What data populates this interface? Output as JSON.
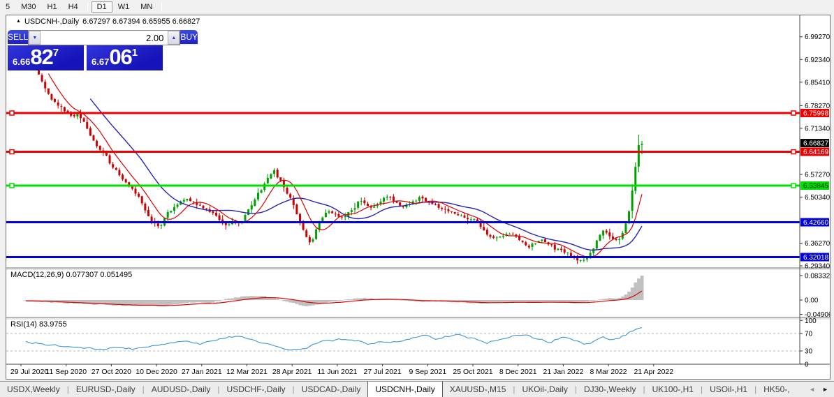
{
  "toolbar": {
    "items": [
      {
        "label": "5"
      },
      {
        "label": "M30"
      },
      {
        "label": "H1"
      },
      {
        "label": "H4"
      },
      {
        "sep": true
      },
      {
        "label": "D1",
        "active": true
      },
      {
        "label": "W1"
      },
      {
        "label": "MN"
      },
      {
        "sep": true
      }
    ]
  },
  "chart": {
    "collapse_arrow": "▲",
    "title_symbol": "USDCNH-,Daily",
    "title_ohlc": "6.67297 6.67394 6.65955 6.66827"
  },
  "trade_panel": {
    "sell_label": "SELL",
    "buy_label": "BUY",
    "volume": "2.00",
    "spin_down": "▼",
    "spin_up": "▲",
    "sell_price": {
      "prefix": "6.66",
      "big": "82",
      "sup": "7"
    },
    "buy_price": {
      "prefix": "6.67",
      "big": "06",
      "sup": "1"
    }
  },
  "macd_panel": {
    "label": "MACD(12,26,9) 0.077307 0.051495"
  },
  "rsi_panel": {
    "label": "RSI(14) 83.9755"
  },
  "tabs": {
    "items": [
      {
        "label": "USDX,Weekly"
      },
      {
        "label": "EURUSD-,Daily"
      },
      {
        "label": "AUDUSD-,Daily"
      },
      {
        "label": "USDCHF-,Daily"
      },
      {
        "label": "USDCAD-,Daily"
      },
      {
        "label": "USDCNH-,Daily",
        "active": true
      },
      {
        "label": "XAUUSD-,M15"
      },
      {
        "label": "UKOil-,Daily"
      },
      {
        "label": "DJ30-,Weekly"
      },
      {
        "label": "UK100-,H1"
      },
      {
        "label": "USOil-,H1"
      },
      {
        "label": "HK50-,"
      }
    ],
    "scroll_left": "◄",
    "scroll_right": "►"
  },
  "chart_data": {
    "type": "candlestick",
    "symbol": "USDCNH-",
    "timeframe": "Daily",
    "bars": 192,
    "ohlc_current": {
      "open": 6.67297,
      "high": 6.67394,
      "low": 6.65955,
      "close": 6.66827
    },
    "last_price": 6.66827,
    "price_axis_ticks": [
      "6.99270",
      "6.92340",
      "6.85410",
      "6.78270",
      "6.71340",
      "6.57270",
      "6.50340",
      "6.36270",
      "6.29340"
    ],
    "price_axis_tick_values": [
      6.9927,
      6.9234,
      6.8541,
      6.7827,
      6.7134,
      6.5727,
      6.5034,
      6.3627,
      6.2934
    ],
    "hlines": [
      {
        "price": 6.75998,
        "label": "6.75998",
        "color": "#ee0000",
        "text": "#ffffff",
        "handles": true
      },
      {
        "price": 6.64169,
        "label": "6.64169",
        "color": "#ee0000",
        "text": "#ffffff",
        "handles": true
      },
      {
        "price": 6.53845,
        "label": "6.53845",
        "color": "#00dd00",
        "text": "#003300",
        "handles": true
      },
      {
        "price": 6.4266,
        "label": "6.42660",
        "color": "#0000dd",
        "text": "#ffffff",
        "handles": false
      },
      {
        "price": 6.32018,
        "label": "6.32018",
        "color": "#0000dd",
        "text": "#ffffff",
        "handles": false
      }
    ],
    "x_axis_dates": [
      "29 Jul 2020",
      "11 Sep 2020",
      "27 Oct 2020",
      "10 Dec 2020",
      "27 Jan 2021",
      "12 Mar 2021",
      "28 Apr 2021",
      "11 Jun 2021",
      "27 Jul 2021",
      "9 Sep 2021",
      "25 Oct 2021",
      "8 Dec 2021",
      "21 Jan 2022",
      "8 Mar 2022",
      "21 Apr 2022"
    ],
    "close_anchors": [
      [
        0,
        6.935
      ],
      [
        0.019,
        6.885
      ],
      [
        0.042,
        6.8
      ],
      [
        0.065,
        6.765
      ],
      [
        0.076,
        6.75
      ],
      [
        0.084,
        6.76
      ],
      [
        0.093,
        6.735
      ],
      [
        0.105,
        6.69
      ],
      [
        0.116,
        6.655
      ],
      [
        0.127,
        6.64
      ],
      [
        0.139,
        6.6
      ],
      [
        0.15,
        6.575
      ],
      [
        0.161,
        6.55
      ],
      [
        0.173,
        6.53
      ],
      [
        0.184,
        6.5
      ],
      [
        0.195,
        6.455
      ],
      [
        0.209,
        6.42
      ],
      [
        0.218,
        6.41
      ],
      [
        0.227,
        6.45
      ],
      [
        0.239,
        6.47
      ],
      [
        0.25,
        6.49
      ],
      [
        0.264,
        6.5
      ],
      [
        0.275,
        6.48
      ],
      [
        0.286,
        6.475
      ],
      [
        0.298,
        6.46
      ],
      [
        0.311,
        6.44
      ],
      [
        0.323,
        6.415
      ],
      [
        0.338,
        6.43
      ],
      [
        0.349,
        6.42
      ],
      [
        0.36,
        6.46
      ],
      [
        0.372,
        6.5
      ],
      [
        0.383,
        6.53
      ],
      [
        0.394,
        6.57
      ],
      [
        0.402,
        6.585
      ],
      [
        0.411,
        6.56
      ],
      [
        0.423,
        6.52
      ],
      [
        0.432,
        6.49
      ],
      [
        0.443,
        6.44
      ],
      [
        0.455,
        6.38
      ],
      [
        0.463,
        6.36
      ],
      [
        0.47,
        6.4
      ],
      [
        0.48,
        6.44
      ],
      [
        0.491,
        6.46
      ],
      [
        0.502,
        6.45
      ],
      [
        0.514,
        6.44
      ],
      [
        0.525,
        6.46
      ],
      [
        0.536,
        6.47
      ],
      [
        0.542,
        6.5
      ],
      [
        0.553,
        6.48
      ],
      [
        0.565,
        6.47
      ],
      [
        0.576,
        6.49
      ],
      [
        0.585,
        6.51
      ],
      [
        0.593,
        6.5
      ],
      [
        0.605,
        6.48
      ],
      [
        0.616,
        6.475
      ],
      [
        0.627,
        6.49
      ],
      [
        0.639,
        6.5
      ],
      [
        0.65,
        6.49
      ],
      [
        0.661,
        6.48
      ],
      [
        0.673,
        6.47
      ],
      [
        0.684,
        6.462
      ],
      [
        0.695,
        6.455
      ],
      [
        0.707,
        6.445
      ],
      [
        0.718,
        6.438
      ],
      [
        0.73,
        6.432
      ],
      [
        0.741,
        6.405
      ],
      [
        0.752,
        6.385
      ],
      [
        0.76,
        6.375
      ],
      [
        0.769,
        6.385
      ],
      [
        0.781,
        6.392
      ],
      [
        0.792,
        6.385
      ],
      [
        0.803,
        6.373
      ],
      [
        0.815,
        6.35
      ],
      [
        0.826,
        6.362
      ],
      [
        0.838,
        6.37
      ],
      [
        0.849,
        6.358
      ],
      [
        0.86,
        6.345
      ],
      [
        0.872,
        6.34
      ],
      [
        0.883,
        6.328
      ],
      [
        0.894,
        6.315
      ],
      [
        0.903,
        6.305
      ],
      [
        0.911,
        6.32
      ],
      [
        0.92,
        6.338
      ],
      [
        0.928,
        6.375
      ],
      [
        0.936,
        6.405
      ],
      [
        0.945,
        6.39
      ],
      [
        0.955,
        6.372
      ],
      [
        0.962,
        6.374
      ],
      [
        0.969,
        6.392
      ],
      [
        0.976,
        6.432
      ],
      [
        0.982,
        6.492
      ],
      [
        0.986,
        6.548
      ],
      [
        0.991,
        6.612
      ],
      [
        0.994,
        6.66
      ],
      [
        0.998,
        6.69
      ],
      [
        1,
        6.668
      ]
    ],
    "indicators": {
      "macd": {
        "params": [
          12,
          26,
          9
        ],
        "current": [
          0.077307,
          0.051495
        ],
        "scale_ticks": [
          "0.083325",
          "0.00",
          "-0.049068"
        ],
        "scale_values": [
          0.083325,
          0,
          -0.049068
        ],
        "anchors": [
          [
            0,
            -0.004
          ],
          [
            0.06,
            -0.01
          ],
          [
            0.12,
            -0.016
          ],
          [
            0.17,
            -0.02
          ],
          [
            0.2,
            -0.018
          ],
          [
            0.22,
            -0.022
          ],
          [
            0.24,
            -0.015
          ],
          [
            0.27,
            -0.008
          ],
          [
            0.3,
            -0.01
          ],
          [
            0.33,
            0.006
          ],
          [
            0.36,
            0.014
          ],
          [
            0.39,
            0.012
          ],
          [
            0.41,
            0.002
          ],
          [
            0.43,
            -0.008
          ],
          [
            0.455,
            -0.022
          ],
          [
            0.47,
            -0.018
          ],
          [
            0.49,
            -0.008
          ],
          [
            0.52,
            0.002
          ],
          [
            0.55,
            0.006
          ],
          [
            0.58,
            0.004
          ],
          [
            0.61,
            -0.002
          ],
          [
            0.64,
            -0.006
          ],
          [
            0.66,
            -0.004
          ],
          [
            0.68,
            -0.005
          ],
          [
            0.7,
            -0.007
          ],
          [
            0.73,
            -0.012
          ],
          [
            0.76,
            -0.01
          ],
          [
            0.79,
            -0.006
          ],
          [
            0.82,
            -0.009
          ],
          [
            0.85,
            -0.007
          ],
          [
            0.88,
            -0.009
          ],
          [
            0.9,
            -0.01
          ],
          [
            0.915,
            -0.005
          ],
          [
            0.93,
            0.003
          ],
          [
            0.945,
            0.006
          ],
          [
            0.955,
            0.004
          ],
          [
            0.965,
            0.008
          ],
          [
            0.975,
            0.02
          ],
          [
            0.982,
            0.036
          ],
          [
            0.988,
            0.055
          ],
          [
            0.994,
            0.072
          ],
          [
            1,
            0.0833
          ]
        ]
      },
      "rsi": {
        "period": 14,
        "current": 83.9755,
        "levels": [
          70,
          30
        ],
        "scale_ticks": [
          "100",
          "70",
          "30",
          "0"
        ],
        "scale_values": [
          100,
          70,
          30,
          0
        ],
        "anchors": [
          [
            0,
            50
          ],
          [
            0.02,
            47
          ],
          [
            0.045,
            43
          ],
          [
            0.07,
            40
          ],
          [
            0.1,
            37
          ],
          [
            0.13,
            34
          ],
          [
            0.15,
            38
          ],
          [
            0.175,
            34
          ],
          [
            0.2,
            40
          ],
          [
            0.22,
            45
          ],
          [
            0.24,
            50
          ],
          [
            0.26,
            54
          ],
          [
            0.28,
            46
          ],
          [
            0.3,
            52
          ],
          [
            0.32,
            60
          ],
          [
            0.345,
            64
          ],
          [
            0.365,
            56
          ],
          [
            0.385,
            48
          ],
          [
            0.41,
            38
          ],
          [
            0.435,
            32
          ],
          [
            0.455,
            36
          ],
          [
            0.475,
            50
          ],
          [
            0.5,
            55
          ],
          [
            0.52,
            58
          ],
          [
            0.54,
            52
          ],
          [
            0.56,
            45
          ],
          [
            0.575,
            52
          ],
          [
            0.59,
            48
          ],
          [
            0.61,
            54
          ],
          [
            0.63,
            60
          ],
          [
            0.65,
            66
          ],
          [
            0.665,
            58
          ],
          [
            0.685,
            64
          ],
          [
            0.7,
            70
          ],
          [
            0.715,
            62
          ],
          [
            0.735,
            55
          ],
          [
            0.75,
            48
          ],
          [
            0.77,
            58
          ],
          [
            0.79,
            64
          ],
          [
            0.81,
            68
          ],
          [
            0.83,
            58
          ],
          [
            0.85,
            50
          ],
          [
            0.865,
            57
          ],
          [
            0.875,
            62
          ],
          [
            0.885,
            58
          ],
          [
            0.895,
            52
          ],
          [
            0.905,
            47
          ],
          [
            0.915,
            44
          ],
          [
            0.925,
            55
          ],
          [
            0.935,
            63
          ],
          [
            0.945,
            58
          ],
          [
            0.955,
            55
          ],
          [
            0.965,
            60
          ],
          [
            0.972,
            66
          ],
          [
            0.98,
            72
          ],
          [
            0.987,
            78
          ],
          [
            0.994,
            82
          ],
          [
            1,
            84
          ]
        ]
      }
    },
    "colors": {
      "up": "#00a000",
      "down": "#cc0000",
      "ma_fast": "#dd0000",
      "ma_slow": "#2525b5",
      "macd_hist": "#c0c0c0",
      "macd_signal": "#dd0000",
      "rsi_line": "#3c96d4",
      "badge_last": "#000000"
    }
  }
}
